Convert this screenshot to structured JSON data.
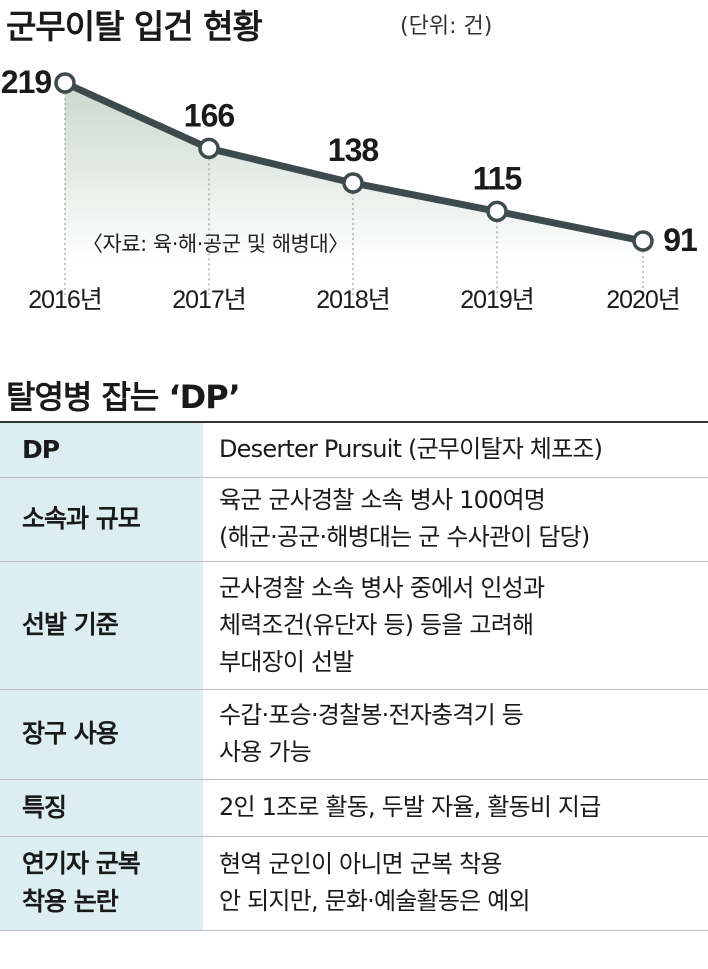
{
  "chart_data": {
    "type": "line",
    "title": "군무이탈 입건 현황",
    "unit": "(단위: 건)",
    "categories": [
      "2016년",
      "2017년",
      "2018년",
      "2019년",
      "2020년"
    ],
    "values": [
      219,
      166,
      138,
      115,
      91
    ],
    "source": "〈자료: 육·해·공군 및 해병대〉",
    "grid": false,
    "area_fill": true,
    "colors": {
      "line": "#3e4b4c",
      "marker_fill": "#ffffff",
      "area": "#d3dfd8"
    }
  },
  "table": {
    "title": "탈영병 잡는 ‘DP’",
    "rows": [
      {
        "label": [
          "DP"
        ],
        "lines": [
          "Deserter Pursuit (군무이탈자 체포조)"
        ]
      },
      {
        "label": [
          "소속과 규모"
        ],
        "lines": [
          "육군 군사경찰 소속 병사 100여명",
          "(해군·공군·해병대는 군 수사관이 담당)"
        ]
      },
      {
        "label": [
          "선발 기준"
        ],
        "lines": [
          "군사경찰 소속 병사 중에서 인성과",
          "체력조건(유단자 등) 등을 고려해",
          "부대장이 선발"
        ]
      },
      {
        "label": [
          "장구 사용"
        ],
        "lines": [
          "수갑·포승·경찰봉·전자충격기 등",
          "사용 가능"
        ]
      },
      {
        "label": [
          "특징"
        ],
        "lines": [
          "2인 1조로 활동, 두발 자율, 활동비 지급"
        ]
      },
      {
        "label": [
          "연기자 군복",
          "착용 논란"
        ],
        "lines": [
          "현역 군인이 아니면 군복 착용",
          "안 되지만, 문화·예술활동은 예외"
        ]
      }
    ],
    "label_bg": "#dceef2"
  }
}
